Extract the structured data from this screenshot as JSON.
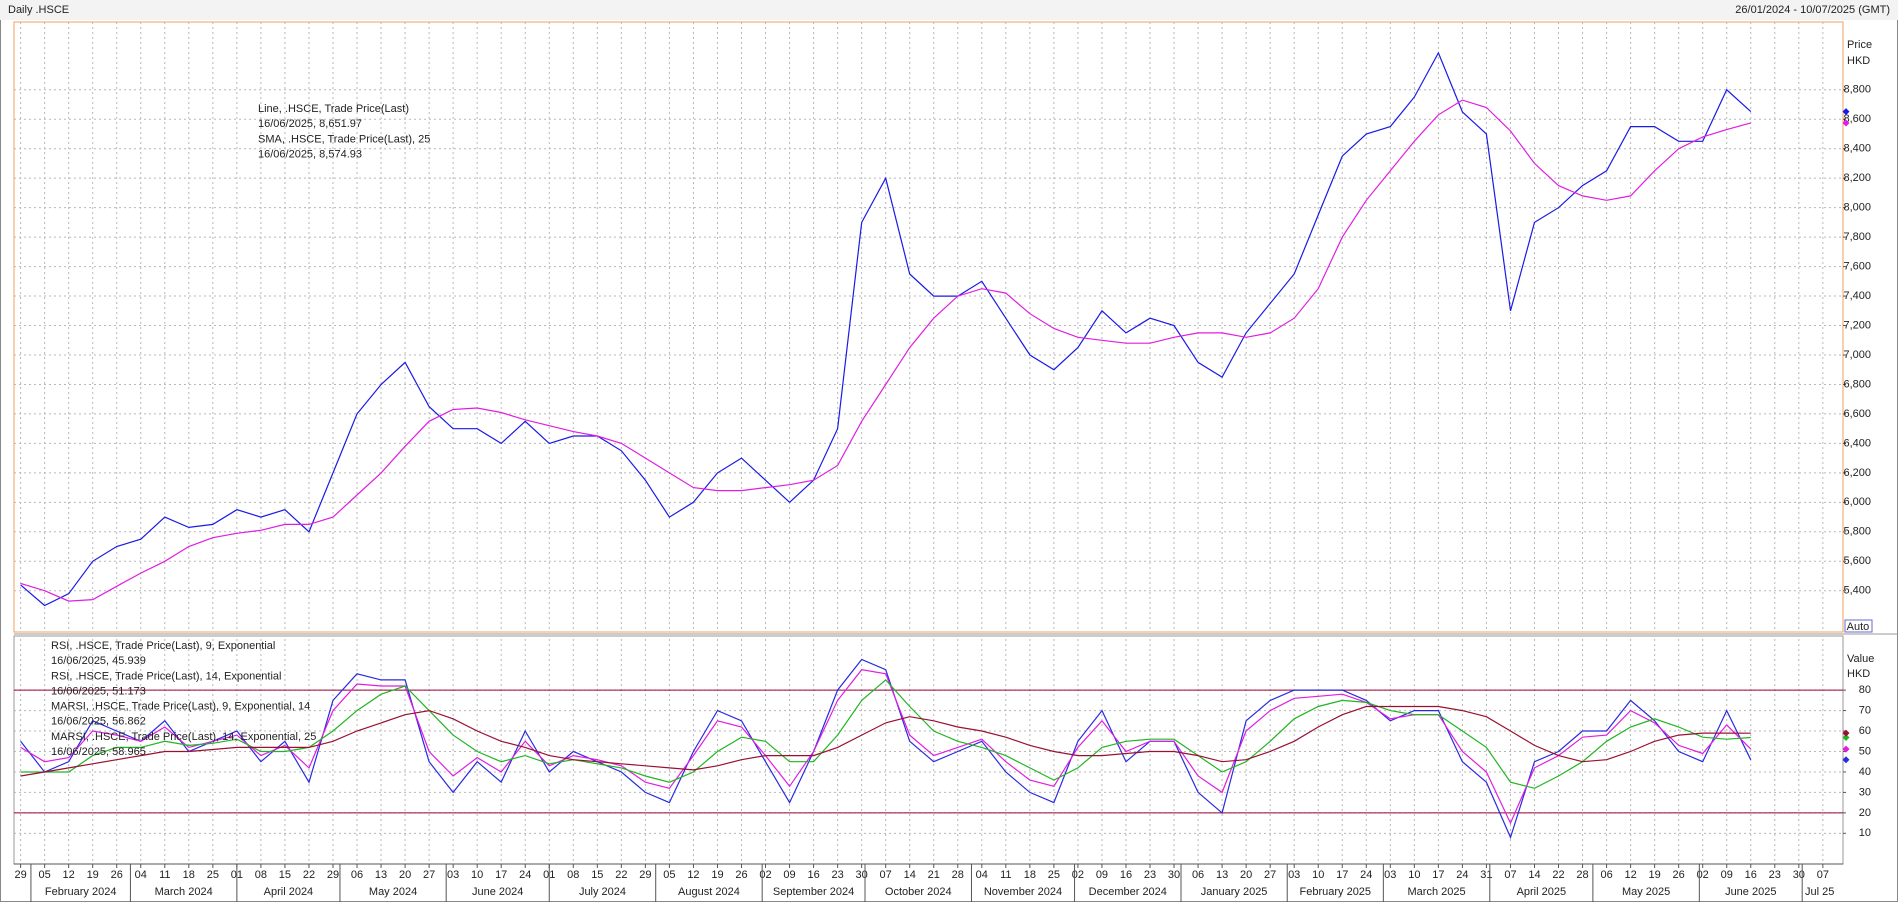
{
  "header": {
    "title": "Daily .HSCE",
    "range": "26/01/2024 - 10/07/2025 (GMT)"
  },
  "chart_data": [
    {
      "type": "line",
      "y_label_lines": [
        "Price",
        "HKD"
      ],
      "auto_button": "Auto",
      "ylim": [
        5120,
        9260
      ],
      "yticks": [
        {
          "value": 5400,
          "label": "5,400"
        },
        {
          "value": 5600,
          "label": "5,600"
        },
        {
          "value": 5800,
          "label": "5,800"
        },
        {
          "value": 6000,
          "label": "6,000"
        },
        {
          "value": 6200,
          "label": "6,200"
        },
        {
          "value": 6400,
          "label": "6,400"
        },
        {
          "value": 6600,
          "label": "6,600"
        },
        {
          "value": 6800,
          "label": "6,800"
        },
        {
          "value": 7000,
          "label": "7,000"
        },
        {
          "value": 7200,
          "label": "7,200"
        },
        {
          "value": 7400,
          "label": "7,400"
        },
        {
          "value": 7600,
          "label": "7,600"
        },
        {
          "value": 7800,
          "label": "7,800"
        },
        {
          "value": 8000,
          "label": "8,000"
        },
        {
          "value": 8200,
          "label": "8,200"
        },
        {
          "value": 8400,
          "label": "8,400"
        },
        {
          "value": 8600,
          "label": "8,600"
        },
        {
          "value": 8800,
          "label": "8,800"
        }
      ],
      "grid": true,
      "series": [
        {
          "name": "Line, .HSCE, Trade Price(Last)",
          "last_label": "16/06/2025, 8,651.97",
          "color": "#1a1ae6",
          "values": [
            5440,
            5300,
            5380,
            5600,
            5700,
            5750,
            5900,
            5830,
            5850,
            5950,
            5900,
            5950,
            5800,
            6200,
            6600,
            6800,
            6950,
            6650,
            6500,
            6500,
            6400,
            6550,
            6400,
            6450,
            6450,
            6350,
            6150,
            5900,
            6000,
            6200,
            6300,
            6150,
            6000,
            6150,
            6500,
            7900,
            8200,
            7550,
            7400,
            7400,
            7500,
            7250,
            7000,
            6900,
            7050,
            7300,
            7150,
            7250,
            7200,
            6950,
            6850,
            7150,
            7350,
            7550,
            7950,
            8350,
            8500,
            8550,
            8750,
            9050,
            8650,
            8500,
            7300,
            7900,
            8000,
            8150,
            8250,
            8550,
            8550,
            8450,
            8450,
            8800,
            8651.97,
            null,
            null,
            null
          ]
        },
        {
          "name": "SMA, .HSCE, Trade Price(Last),  25",
          "last_label": "16/06/2025, 8,574.93",
          "color": "#e01ee0",
          "values": [
            5450,
            5400,
            5330,
            5340,
            5430,
            5520,
            5600,
            5700,
            5760,
            5790,
            5810,
            5850,
            5850,
            5900,
            6050,
            6200,
            6380,
            6550,
            6630,
            6640,
            6610,
            6560,
            6520,
            6480,
            6450,
            6400,
            6300,
            6200,
            6100,
            6080,
            6080,
            6100,
            6120,
            6150,
            6250,
            6550,
            6800,
            7050,
            7250,
            7400,
            7450,
            7420,
            7280,
            7180,
            7120,
            7100,
            7080,
            7080,
            7120,
            7150,
            7150,
            7120,
            7150,
            7250,
            7450,
            7800,
            8050,
            8250,
            8450,
            8630,
            8730,
            8680,
            8520,
            8300,
            8150,
            8080,
            8050,
            8080,
            8250,
            8400,
            8480,
            8530,
            8574.93,
            null,
            null,
            null
          ]
        }
      ]
    },
    {
      "type": "line",
      "y_label_lines": [
        "Value",
        "HKD"
      ],
      "ylim": [
        -5,
        105
      ],
      "yticks": [
        10,
        20,
        30,
        40,
        50,
        60,
        70,
        80
      ],
      "grid": true,
      "levels": [
        20,
        80
      ],
      "level_color": "#9a0038",
      "categories": [
        "29",
        "05",
        "12",
        "19",
        "26",
        "04",
        "11",
        "18",
        "25",
        "01",
        "08",
        "15",
        "22",
        "29",
        "06",
        "13",
        "20",
        "27",
        "03",
        "10",
        "17",
        "24",
        "01",
        "08",
        "15",
        "22",
        "29",
        "05",
        "12",
        "19",
        "26",
        "02",
        "09",
        "16",
        "23",
        "30",
        "07",
        "14",
        "21",
        "28",
        "04",
        "11",
        "18",
        "25",
        "02",
        "09",
        "16",
        "23",
        "30",
        "06",
        "13",
        "20",
        "27",
        "03",
        "10",
        "17",
        "24",
        "03",
        "10",
        "17",
        "24",
        "31",
        "07",
        "14",
        "22",
        "28",
        "06",
        "12",
        "19",
        "26",
        "02",
        "09",
        "16",
        "23",
        "30",
        "07"
      ],
      "month_labels": [
        "February 2024",
        "March 2024",
        "April 2024",
        "May 2024",
        "June 2024",
        "July 2024",
        "August 2024",
        "September 2024",
        "October 2024",
        "November 2024",
        "December 2024",
        "January 2025",
        "February 2025",
        "March 2025",
        "April 2025",
        "May 2025",
        "June 2025",
        "Jul 25"
      ],
      "series": [
        {
          "name": "RSI, .HSCE, Trade Price(Last),  9, Exponential",
          "last_label": "16/06/2025, 45.939",
          "color": "#2a2ae0",
          "values": [
            55,
            40,
            45,
            65,
            60,
            55,
            65,
            50,
            55,
            60,
            45,
            55,
            35,
            75,
            88,
            85,
            85,
            45,
            30,
            45,
            35,
            60,
            40,
            50,
            45,
            40,
            30,
            25,
            50,
            70,
            65,
            45,
            25,
            50,
            80,
            95,
            90,
            55,
            45,
            50,
            55,
            40,
            30,
            25,
            55,
            70,
            45,
            55,
            55,
            30,
            20,
            65,
            75,
            80,
            80,
            80,
            75,
            65,
            70,
            70,
            45,
            35,
            8,
            45,
            50,
            60,
            60,
            75,
            65,
            50,
            45,
            70,
            45.939,
            null,
            null,
            null
          ]
        },
        {
          "name": "RSI, .HSCE, Trade Price(Last),  14, Exponential",
          "last_label": "16/06/2025, 51.173",
          "color": "#e01ee0",
          "values": [
            52,
            45,
            47,
            60,
            58,
            55,
            62,
            52,
            55,
            58,
            48,
            53,
            42,
            70,
            83,
            82,
            82,
            50,
            38,
            47,
            40,
            55,
            43,
            48,
            46,
            43,
            35,
            32,
            48,
            65,
            62,
            48,
            33,
            50,
            75,
            90,
            88,
            58,
            48,
            52,
            56,
            45,
            36,
            33,
            52,
            65,
            50,
            55,
            55,
            38,
            30,
            60,
            70,
            76,
            77,
            78,
            74,
            66,
            68,
            68,
            50,
            40,
            15,
            42,
            48,
            57,
            58,
            70,
            64,
            53,
            49,
            63,
            51.173,
            null,
            null,
            null
          ]
        },
        {
          "name": "MARSI, .HSCE, Trade Price(Last),  9, Exponential, 14",
          "last_label": "16/06/2025, 56.862",
          "color": "#22b522",
          "values": [
            40,
            40,
            40,
            48,
            52,
            52,
            55,
            53,
            54,
            56,
            50,
            50,
            52,
            60,
            70,
            78,
            82,
            70,
            58,
            50,
            45,
            48,
            44,
            46,
            44,
            42,
            38,
            35,
            40,
            50,
            57,
            55,
            45,
            45,
            58,
            75,
            85,
            72,
            60,
            55,
            52,
            48,
            42,
            36,
            42,
            52,
            55,
            56,
            56,
            48,
            40,
            45,
            55,
            66,
            72,
            75,
            74,
            70,
            68,
            68,
            60,
            52,
            35,
            32,
            38,
            45,
            55,
            62,
            66,
            62,
            57,
            56,
            56.862,
            null,
            null,
            null
          ]
        },
        {
          "name": "MARSI, .HSCE, Trade Price(Last),  14, Exponential, 25",
          "last_label": "16/06/2025, 58.965",
          "color": "#9a1030",
          "values": [
            38,
            40,
            42,
            44,
            46,
            48,
            50,
            50,
            51,
            52,
            52,
            52,
            52,
            55,
            60,
            64,
            68,
            70,
            66,
            60,
            55,
            52,
            48,
            46,
            45,
            44,
            43,
            42,
            41,
            43,
            46,
            48,
            48,
            48,
            52,
            58,
            64,
            67,
            65,
            62,
            60,
            57,
            53,
            50,
            48,
            48,
            49,
            50,
            50,
            48,
            45,
            46,
            50,
            55,
            62,
            68,
            72,
            72,
            72,
            72,
            70,
            67,
            60,
            53,
            48,
            45,
            46,
            50,
            55,
            58,
            59,
            59,
            58.965,
            null,
            null,
            null
          ]
        }
      ]
    }
  ]
}
